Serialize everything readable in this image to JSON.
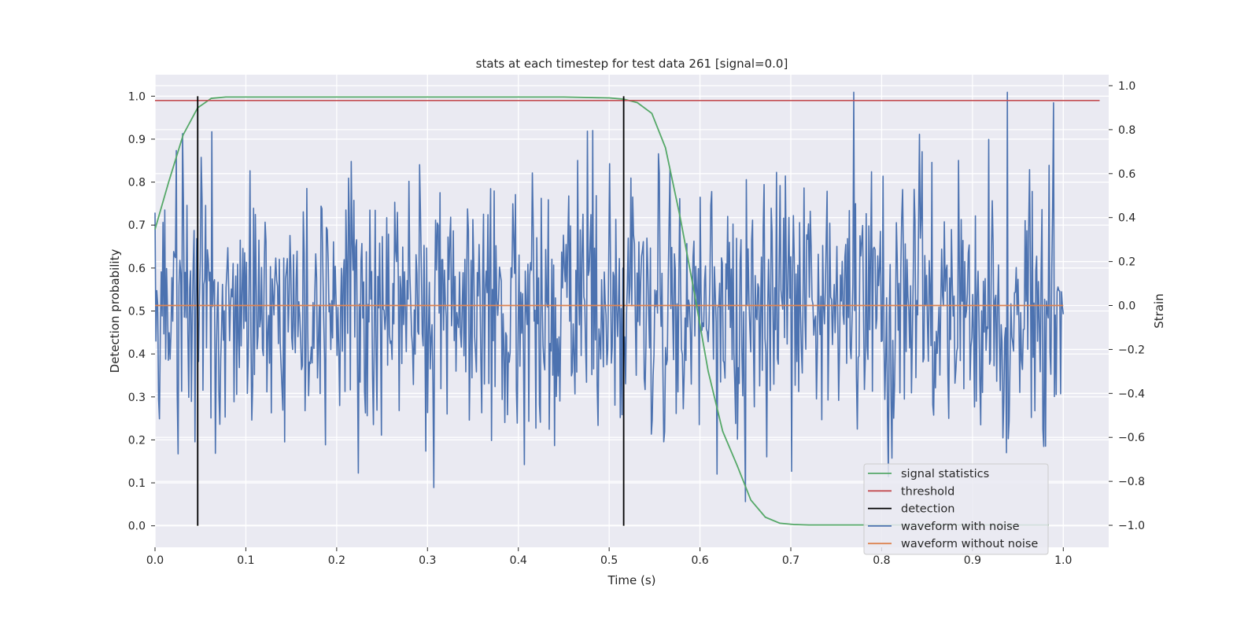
{
  "chart_data": {
    "type": "line",
    "title": "stats at each timestep for test data 261 [signal=0.0]",
    "xlabel": "Time (s)",
    "ylabel": "Detection probability",
    "ylabel_right": "Strain",
    "xlim": [
      0.0,
      1.05
    ],
    "ylim": [
      -0.05,
      1.05
    ],
    "ylim_right": [
      -1.1,
      1.05
    ],
    "xticks": [
      "0.0",
      "0.1",
      "0.2",
      "0.3",
      "0.4",
      "0.5",
      "0.6",
      "0.7",
      "0.8",
      "0.9",
      "1.0"
    ],
    "yticks": [
      "0.0",
      "0.1",
      "0.2",
      "0.3",
      "0.4",
      "0.5",
      "0.6",
      "0.7",
      "0.8",
      "0.9",
      "1.0"
    ],
    "yticks_right": [
      "−1.0",
      "−0.8",
      "−0.6",
      "−0.4",
      "−0.2",
      "0.0",
      "0.2",
      "0.4",
      "0.6",
      "0.8",
      "1.0"
    ],
    "grid": true,
    "legend_position": "lower-right",
    "colors": {
      "signal": "#55a868",
      "threshold": "#c44e52",
      "detection": "#000000",
      "noisy": "#4c72b0",
      "clean": "#dd8452",
      "plot_bg": "#eaeaf2",
      "grid": "#ffffff"
    },
    "signal_statistics": {
      "name": "signal statistics",
      "x": [
        0.0,
        0.015,
        0.031,
        0.047,
        0.062,
        0.078,
        0.1,
        0.2,
        0.3,
        0.4,
        0.45,
        0.5,
        0.516,
        0.531,
        0.547,
        0.562,
        0.578,
        0.594,
        0.609,
        0.625,
        0.641,
        0.656,
        0.672,
        0.688,
        0.703,
        0.72,
        0.8,
        0.9,
        0.984
      ],
      "y": [
        0.69,
        0.8,
        0.91,
        0.973,
        0.995,
        0.998,
        0.998,
        0.998,
        0.998,
        0.998,
        0.998,
        0.996,
        0.993,
        0.985,
        0.96,
        0.88,
        0.72,
        0.54,
        0.36,
        0.22,
        0.14,
        0.06,
        0.02,
        0.006,
        0.003,
        0.002,
        0.002,
        0.002,
        0.002
      ]
    },
    "threshold": {
      "name": "threshold",
      "value": 0.99,
      "x": [
        0.0,
        1.04
      ]
    },
    "detections": {
      "name": "detection",
      "x": [
        0.047,
        0.516
      ],
      "y_range": [
        0.0,
        1.0
      ]
    },
    "waveform_with_noise": {
      "name": "waveform with noise",
      "x_range": [
        0.0,
        1.0
      ],
      "n_points": 1024,
      "min": -1.0,
      "max": 0.97
    },
    "waveform_without_noise": {
      "name": "waveform without noise",
      "x_range": [
        0.0,
        1.0
      ],
      "value": 0.0
    },
    "legend": [
      "signal statistics",
      "threshold",
      "detection",
      "waveform with noise",
      "waveform without noise"
    ]
  }
}
